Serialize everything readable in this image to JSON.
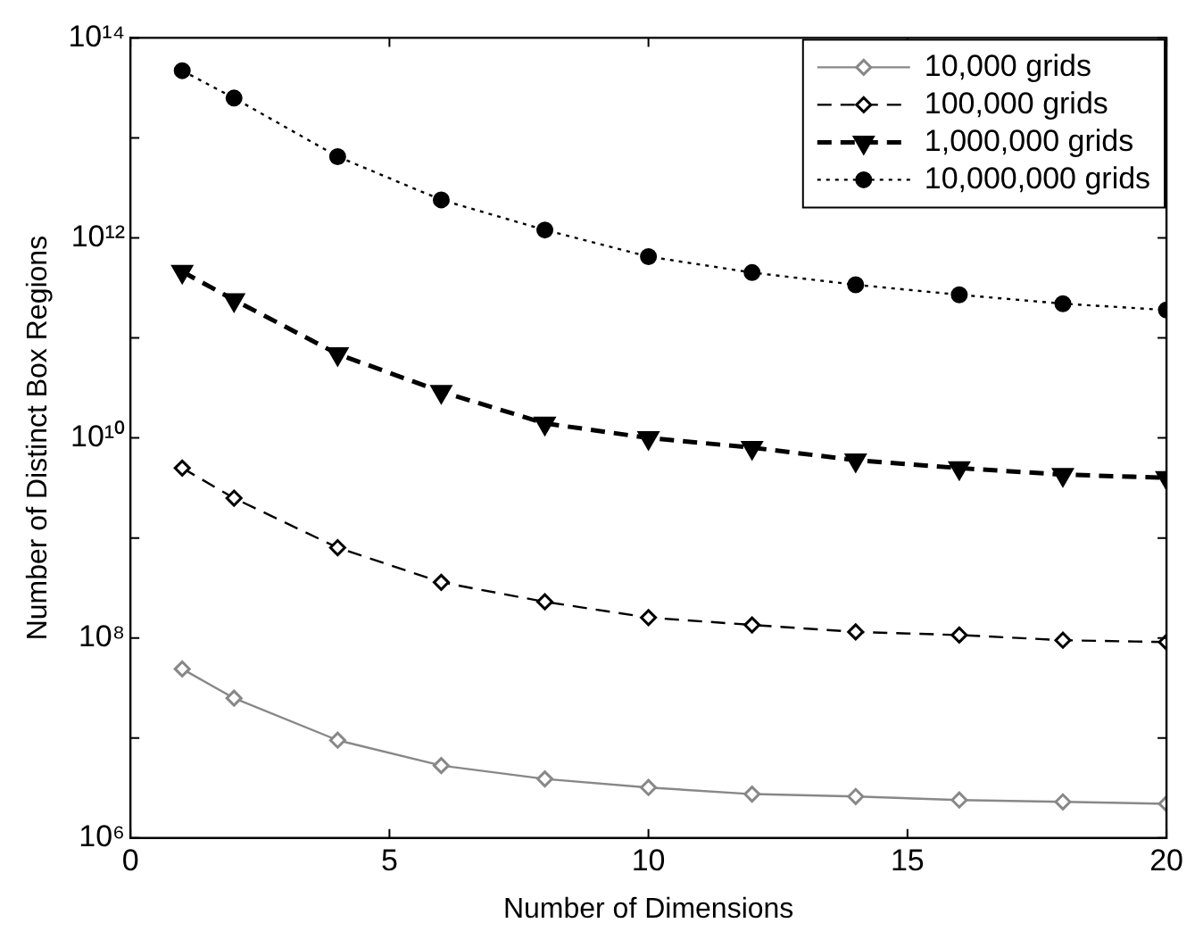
{
  "chart_data": {
    "type": "line",
    "xlabel": "Number of Dimensions",
    "ylabel": "Number of Distinct Box Regions",
    "x": [
      1,
      2,
      4,
      6,
      8,
      10,
      12,
      14,
      16,
      18,
      20
    ],
    "series": [
      {
        "name": "10,000 grids",
        "color": "#888888",
        "marker": "diamond",
        "line_style": "solid",
        "values": [
          49000000.0,
          25000000.0,
          9500000.0,
          5300000.0,
          3900000.0,
          3200000.0,
          2750000.0,
          2600000.0,
          2400000.0,
          2300000.0,
          2200000.0
        ]
      },
      {
        "name": "100,000 grids",
        "color": "#000000",
        "marker": "diamond",
        "line_style": "dashed",
        "values": [
          5000000000.0,
          2500000000.0,
          800000000.0,
          360000000.0,
          230000000.0,
          160000000.0,
          135000000.0,
          115000000.0,
          107000000.0,
          95000000.0,
          91000000.0
        ]
      },
      {
        "name": "1,000,000 grids",
        "color": "#000000",
        "marker": "triangle",
        "line_style": "dashed",
        "values": [
          460000000000.0,
          240000000000.0,
          69000000000.0,
          29000000000.0,
          14000000000.0,
          10000000000.0,
          8000000000.0,
          6000000000.0,
          5000000000.0,
          4300000000.0,
          4000000000.0
        ]
      },
      {
        "name": "10,000,000 grids",
        "color": "#000000",
        "marker": "circle",
        "line_style": "dotted",
        "values": [
          47000000000000.0,
          25000000000000.0,
          6500000000000.0,
          2400000000000.0,
          1200000000000.0,
          650000000000.0,
          450000000000.0,
          340000000000.0,
          270000000000.0,
          220000000000.0,
          190000000000.0
        ]
      }
    ],
    "log": "y",
    "xlim": [
      0,
      20
    ],
    "xticks": [
      0,
      5,
      10,
      15,
      20
    ],
    "ylim": [
      1000000.0,
      100000000000000.0
    ],
    "yticks": [
      {
        "value": 1000000.0,
        "label": "10⁶"
      },
      {
        "value": 10000000.0,
        "label": null
      },
      {
        "value": 100000000.0,
        "label": "10⁸"
      },
      {
        "value": 1000000000.0,
        "label": null
      },
      {
        "value": 10000000000.0,
        "label": "10¹⁰"
      },
      {
        "value": 100000000000.0,
        "label": null
      },
      {
        "value": 1000000000000.0,
        "label": "10¹²"
      },
      {
        "value": 10000000000000.0,
        "label": null
      },
      {
        "value": 100000000000000.0,
        "label": "10¹⁴"
      }
    ],
    "grid": false,
    "legend": "top right"
  }
}
